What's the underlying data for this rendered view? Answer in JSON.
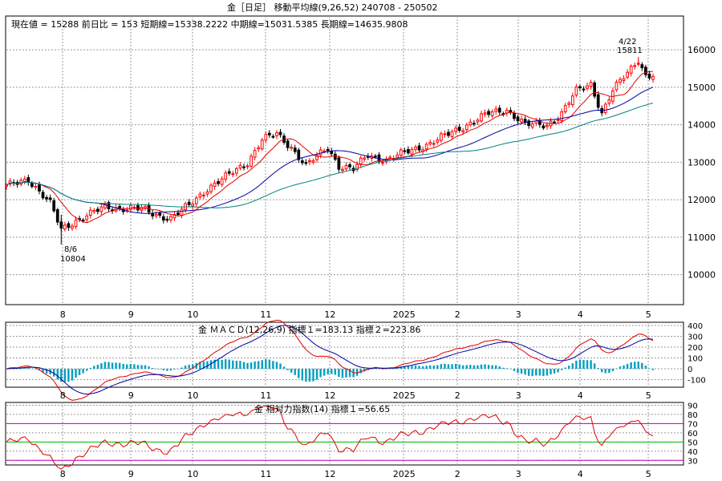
{
  "header": {
    "title": "金［日足］ 移動平均線(9,26,52)  240708 - 250502",
    "info": "現在値 = 15288  前日比 = 153   短期線=15338.2222   中期線=15031.5385   長期線=14635.9808"
  },
  "macd_panel": {
    "title": "金    ＭＡＣＤ(12,26,9) 指標１=183.13  指標２=223.86"
  },
  "rsi_panel": {
    "title": "金    相対力指数(14) 指標１=56.65"
  },
  "annotations": {
    "high_date": "4/22",
    "high_value": "15811",
    "low_date": "8/6",
    "low_value": "10804"
  },
  "colors": {
    "short_ma": "#e00000",
    "mid_ma": "#0000a0",
    "long_ma": "#008080",
    "up_candle": "#ff0000",
    "down_candle": "#000000",
    "histogram": "#00a0c0",
    "rsi_line": "#e00000",
    "rsi_guides": "#c000c0",
    "rsi_mid": "#00c000"
  },
  "chart_data": [
    {
      "type": "candlestick",
      "title": "金［日足］ 移動平均線(9,26,52)",
      "x_ticks": [
        "8",
        "9",
        "10",
        "11",
        "12",
        "2025",
        "2",
        "3",
        "4",
        "5"
      ],
      "y_ticks": [
        10000,
        11000,
        12000,
        13000,
        14000,
        15000,
        16000
      ],
      "ylim": [
        9200,
        16900
      ],
      "close_anchors": [
        {
          "t": 0,
          "v": 12350
        },
        {
          "t": 6,
          "v": 12550
        },
        {
          "t": 12,
          "v": 11900
        },
        {
          "t": 15,
          "v": 11200
        },
        {
          "t": 19,
          "v": 11450
        },
        {
          "t": 27,
          "v": 11800
        },
        {
          "t": 37,
          "v": 11750
        },
        {
          "t": 41,
          "v": 11600
        },
        {
          "t": 45,
          "v": 11500
        },
        {
          "t": 50,
          "v": 11850
        },
        {
          "t": 55,
          "v": 12300
        },
        {
          "t": 60,
          "v": 12600
        },
        {
          "t": 66,
          "v": 13000
        },
        {
          "t": 70,
          "v": 13600
        },
        {
          "t": 74,
          "v": 13750
        },
        {
          "t": 78,
          "v": 13400
        },
        {
          "t": 82,
          "v": 12900
        },
        {
          "t": 88,
          "v": 13400
        },
        {
          "t": 91,
          "v": 12900
        },
        {
          "t": 95,
          "v": 12800
        },
        {
          "t": 99,
          "v": 13200
        },
        {
          "t": 104,
          "v": 13050
        },
        {
          "t": 110,
          "v": 13300
        },
        {
          "t": 116,
          "v": 13500
        },
        {
          "t": 124,
          "v": 13900
        },
        {
          "t": 132,
          "v": 14300
        },
        {
          "t": 137,
          "v": 14400
        },
        {
          "t": 142,
          "v": 14000
        },
        {
          "t": 148,
          "v": 14000
        },
        {
          "t": 152,
          "v": 14300
        },
        {
          "t": 156,
          "v": 14900
        },
        {
          "t": 160,
          "v": 15100
        },
        {
          "t": 163,
          "v": 14300
        },
        {
          "t": 166,
          "v": 14900
        },
        {
          "t": 170,
          "v": 15400
        },
        {
          "t": 173,
          "v": 15750
        },
        {
          "t": 175,
          "v": 15300
        },
        {
          "t": 177,
          "v": 15288
        }
      ],
      "annotations": [
        {
          "date": "4/22",
          "value": 15811
        },
        {
          "date": "8/6",
          "value": 10804
        }
      ],
      "moving_averages": [
        {
          "name": "短期線",
          "period": 9,
          "last": 15338.2222
        },
        {
          "name": "中期線",
          "period": 26,
          "last": 15031.5385
        },
        {
          "name": "長期線",
          "period": 52,
          "last": 14635.9808
        }
      ],
      "last_close": 15288,
      "change": 153
    },
    {
      "type": "line",
      "title": "ＭＡＣＤ(12,26,9)",
      "x_ticks": [
        "8",
        "9",
        "10",
        "11",
        "12",
        "2025",
        "2",
        "3",
        "4",
        "5"
      ],
      "y_ticks": [
        -100,
        0,
        100,
        200,
        300,
        400
      ],
      "ylim": [
        -170,
        430
      ],
      "series": [
        {
          "name": "指標１",
          "last": 183.13
        },
        {
          "name": "指標２",
          "last": 223.86
        }
      ]
    },
    {
      "type": "line",
      "title": "相対力指数(14)",
      "x_ticks": [
        "8",
        "9",
        "10",
        "11",
        "12",
        "2025",
        "2",
        "3",
        "4",
        "5"
      ],
      "y_ticks": [
        30,
        40,
        50,
        60,
        70,
        80,
        90
      ],
      "ylim": [
        25,
        93
      ],
      "reference_lines": [
        30,
        50,
        70
      ],
      "series": [
        {
          "name": "指標１",
          "last": 56.65
        }
      ]
    }
  ]
}
